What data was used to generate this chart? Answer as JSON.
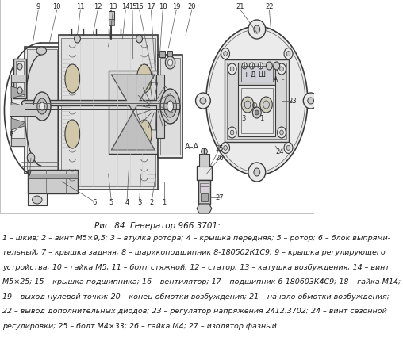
{
  "title": "Рис. 84. Генератор 966.3701:",
  "description_lines": [
    "1 – шкив; 2 – винт М5×9,5; 3 – втулка ротора; 4 – крышка передняя; 5 – ротор; 6 – блок выпрями-",
    "тельный; 7 – крышка задняя; 8 – шарикоподшипник 8-180502К1С9; 9 – крышка регулирующего",
    "устройства; 10 – гайка М5; 11 – болт стяжной; 12 – статор; 13 – катушка возбуждения; 14 – винт",
    "М5×25; 15 – крышка подшипника; 16 – вентилятор; 17 – подшипник 6-180603К4С9; 18 – гайка М14;",
    "19 – выход нулевой точки; 20 – конец обмотки возбуждения; 21 – начало обмотки возбуждения;",
    "22 – вывод дополнительных диодов; 23 – регулятор напряжения 2412.3702; 24 – винт сезонной",
    "регулировки; 25 – болт М4×33; 26 – гайка М4; 27 – изолятор фазный"
  ],
  "bg_color": "#ffffff",
  "text_color": "#1a1a1a",
  "title_fontsize": 7.5,
  "desc_fontsize": 6.8,
  "fig_width": 5.08,
  "fig_height": 4.31,
  "dpi": 100
}
